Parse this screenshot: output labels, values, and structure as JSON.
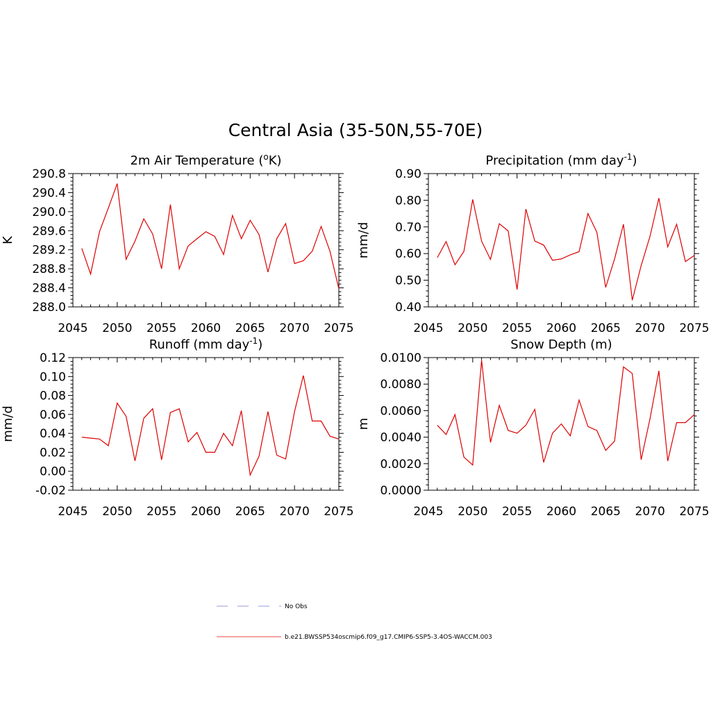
{
  "main_title": "Central Asia (35-50N,55-70E)",
  "legend": [
    {
      "label": "No Obs",
      "color": "#9999dd",
      "dash": true
    },
    {
      "label": "b.e21.BWSSP534oscmip6.f09_g17.CMIP6-SSP5-3.4OS-WACCM.003",
      "color": "#ee4444",
      "dash": false
    }
  ],
  "chart_data": [
    {
      "id": "temperature",
      "type": "line",
      "title": {
        "main": "2m Air Temperature (",
        "sup": "o",
        "post": "K)"
      },
      "xlabel": "",
      "ylabel": "K",
      "xlim": [
        2045,
        2075
      ],
      "ylim": [
        288.0,
        290.8
      ],
      "xticks": [
        2045,
        2050,
        2055,
        2060,
        2065,
        2070,
        2075
      ],
      "yticks": [
        288.0,
        288.4,
        288.8,
        289.2,
        289.6,
        290.0,
        290.4,
        290.8
      ],
      "ytick_labels": [
        "288.0",
        "288.4",
        "288.8",
        "289.2",
        "289.6",
        "290.0",
        "290.4",
        "290.8"
      ],
      "series": [
        {
          "name": "b.e21.BWSSP534oscmip6.f09_g17.CMIP6-SSP5-3.4OS-WACCM.003",
          "color": "#dd0000",
          "x": [
            2046,
            2047,
            2048,
            2049,
            2050,
            2051,
            2052,
            2053,
            2054,
            2055,
            2056,
            2057,
            2058,
            2059,
            2060,
            2061,
            2062,
            2063,
            2064,
            2065,
            2066,
            2067,
            2068,
            2069,
            2070,
            2071,
            2072,
            2073,
            2074,
            2075
          ],
          "y": [
            289.23,
            288.69,
            289.58,
            290.08,
            290.59,
            289.0,
            289.38,
            289.85,
            289.53,
            288.8,
            290.15,
            288.8,
            289.28,
            289.43,
            289.58,
            289.48,
            289.1,
            289.92,
            289.43,
            289.82,
            289.52,
            288.73,
            289.43,
            289.75,
            288.91,
            288.97,
            289.17,
            289.69,
            289.17,
            288.38
          ]
        }
      ]
    },
    {
      "id": "precipitation",
      "type": "line",
      "title": {
        "main": "Precipitation (mm day",
        "sup": "-1",
        "post": ")"
      },
      "xlabel": "",
      "ylabel": "mm/d",
      "xlim": [
        2045,
        2075
      ],
      "ylim": [
        0.4,
        0.9
      ],
      "xticks": [
        2045,
        2050,
        2055,
        2060,
        2065,
        2070,
        2075
      ],
      "yticks": [
        0.4,
        0.5,
        0.6,
        0.7,
        0.8,
        0.9
      ],
      "ytick_labels": [
        "0.40",
        "0.50",
        "0.60",
        "0.70",
        "0.80",
        "0.90"
      ],
      "series": [
        {
          "name": "b.e21.BWSSP534oscmip6.f09_g17.CMIP6-SSP5-3.4OS-WACCM.003",
          "color": "#dd0000",
          "x": [
            2046,
            2047,
            2048,
            2049,
            2050,
            2051,
            2052,
            2053,
            2054,
            2055,
            2056,
            2057,
            2058,
            2059,
            2060,
            2061,
            2062,
            2063,
            2064,
            2065,
            2066,
            2067,
            2068,
            2069,
            2070,
            2071,
            2072,
            2073,
            2074,
            2075
          ],
          "y": [
            0.585,
            0.645,
            0.558,
            0.608,
            0.803,
            0.647,
            0.578,
            0.712,
            0.685,
            0.465,
            0.767,
            0.647,
            0.632,
            0.575,
            0.58,
            0.595,
            0.607,
            0.75,
            0.68,
            0.473,
            0.58,
            0.71,
            0.425,
            0.555,
            0.665,
            0.808,
            0.625,
            0.71,
            0.57,
            0.593
          ]
        }
      ]
    },
    {
      "id": "runoff",
      "type": "line",
      "title": {
        "main": "Runoff (mm day",
        "sup": "-1",
        "post": ")"
      },
      "xlabel": "",
      "ylabel": "mm/d",
      "xlim": [
        2045,
        2075
      ],
      "ylim": [
        -0.02,
        0.12
      ],
      "xticks": [
        2045,
        2050,
        2055,
        2060,
        2065,
        2070,
        2075
      ],
      "yticks": [
        -0.02,
        0.0,
        0.02,
        0.04,
        0.06,
        0.08,
        0.1,
        0.12
      ],
      "ytick_labels": [
        "-0.02",
        "0.00",
        "0.02",
        "0.04",
        "0.06",
        "0.08",
        "0.10",
        "0.12"
      ],
      "series": [
        {
          "name": "b.e21.BWSSP534oscmip6.f09_g17.CMIP6-SSP5-3.4OS-WACCM.003",
          "color": "#dd0000",
          "x": [
            2046,
            2047,
            2048,
            2049,
            2050,
            2051,
            2052,
            2053,
            2054,
            2055,
            2056,
            2057,
            2058,
            2059,
            2060,
            2061,
            2062,
            2063,
            2064,
            2065,
            2066,
            2067,
            2068,
            2069,
            2070,
            2071,
            2072,
            2073,
            2074,
            2075
          ],
          "y": [
            0.036,
            0.035,
            0.034,
            0.027,
            0.072,
            0.058,
            0.011,
            0.056,
            0.066,
            0.012,
            0.062,
            0.066,
            0.031,
            0.041,
            0.02,
            0.02,
            0.04,
            0.027,
            0.064,
            -0.004,
            0.016,
            0.063,
            0.017,
            0.013,
            0.063,
            0.101,
            0.053,
            0.053,
            0.037,
            0.034
          ]
        }
      ]
    },
    {
      "id": "snow_depth",
      "type": "line",
      "title": {
        "main": "Snow Depth (m)",
        "sup": "",
        "post": ""
      },
      "xlabel": "",
      "ylabel": "m",
      "xlim": [
        2045,
        2075
      ],
      "ylim": [
        0.0,
        0.01
      ],
      "xticks": [
        2045,
        2050,
        2055,
        2060,
        2065,
        2070,
        2075
      ],
      "yticks": [
        0.0,
        0.002,
        0.004,
        0.006,
        0.008,
        0.01
      ],
      "ytick_labels": [
        "0.0000",
        "0.0020",
        "0.0040",
        "0.0060",
        "0.0080",
        "0.0100"
      ],
      "series": [
        {
          "name": "b.e21.BWSSP534oscmip6.f09_g17.CMIP6-SSP5-3.4OS-WACCM.003",
          "color": "#dd0000",
          "x": [
            2046,
            2047,
            2048,
            2049,
            2050,
            2051,
            2052,
            2053,
            2054,
            2055,
            2056,
            2057,
            2058,
            2059,
            2060,
            2061,
            2062,
            2063,
            2064,
            2065,
            2066,
            2067,
            2068,
            2069,
            2070,
            2071,
            2072,
            2073,
            2074,
            2075
          ],
          "y": [
            0.0049,
            0.0042,
            0.0057,
            0.0025,
            0.0019,
            0.0098,
            0.0036,
            0.0064,
            0.0045,
            0.0043,
            0.0049,
            0.0061,
            0.0021,
            0.0043,
            0.005,
            0.0041,
            0.0068,
            0.0048,
            0.0045,
            0.003,
            0.0037,
            0.0093,
            0.0088,
            0.0023,
            0.0054,
            0.009,
            0.0022,
            0.0051,
            0.0051,
            0.0057
          ]
        }
      ]
    }
  ]
}
